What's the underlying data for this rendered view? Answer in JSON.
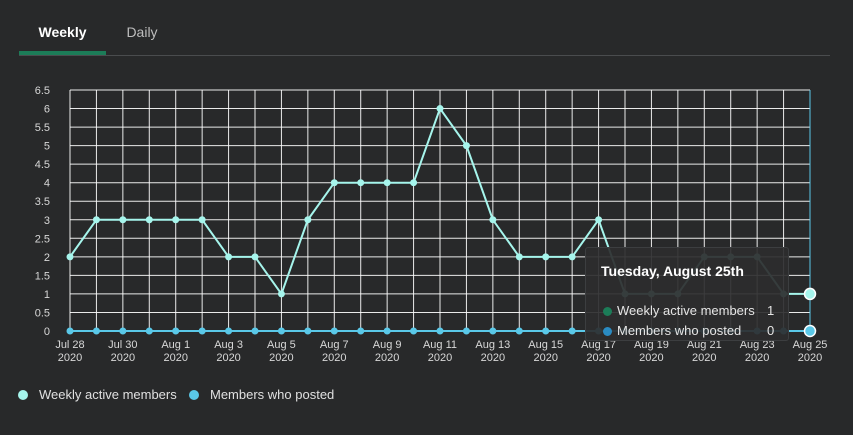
{
  "tabs": [
    {
      "label": "Weekly",
      "active": true
    },
    {
      "label": "Daily",
      "active": false
    }
  ],
  "colors": {
    "accent": "#1c7c58",
    "active_line": "#a6f5ec",
    "posted_line": "#5ac8e8",
    "background": "#28292a",
    "grid": "#ffffff"
  },
  "legend": [
    {
      "label": "Weekly active members",
      "color": "#a6f5ec"
    },
    {
      "label": "Members who posted",
      "color": "#5ac8e8"
    }
  ],
  "tooltip": {
    "title": "Tuesday, August 25th",
    "rows": [
      {
        "label": "Weekly active members",
        "value": "1",
        "color": "#1c7c58"
      },
      {
        "label": "Members who posted",
        "value": "0",
        "color": "#2a8bc2"
      }
    ]
  },
  "chart_data": {
    "type": "line",
    "grid": true,
    "ylim": [
      0,
      6.5
    ],
    "y_ticks": [
      "0",
      "0.5",
      "1",
      "1.5",
      "2",
      "2.5",
      "3",
      "3.5",
      "4",
      "4.5",
      "5",
      "5.5",
      "6",
      "6.5"
    ],
    "x": [
      "Jul 28",
      "Jul 29",
      "Jul 30",
      "Jul 31",
      "Aug 1",
      "Aug 2",
      "Aug 3",
      "Aug 4",
      "Aug 5",
      "Aug 6",
      "Aug 7",
      "Aug 8",
      "Aug 9",
      "Aug 10",
      "Aug 11",
      "Aug 12",
      "Aug 13",
      "Aug 14",
      "Aug 15",
      "Aug 16",
      "Aug 17",
      "Aug 18",
      "Aug 19",
      "Aug 20",
      "Aug 21",
      "Aug 22",
      "Aug 23",
      "Aug 24",
      "Aug 25"
    ],
    "x_tick_labels": [
      {
        "top": "Jul 28",
        "bottom": "2020"
      },
      {
        "top": "Jul 30",
        "bottom": "2020"
      },
      {
        "top": "Aug 1",
        "bottom": "2020"
      },
      {
        "top": "Aug 3",
        "bottom": "2020"
      },
      {
        "top": "Aug 5",
        "bottom": "2020"
      },
      {
        "top": "Aug 7",
        "bottom": "2020"
      },
      {
        "top": "Aug 9",
        "bottom": "2020"
      },
      {
        "top": "Aug 11",
        "bottom": "2020"
      },
      {
        "top": "Aug 13",
        "bottom": "2020"
      },
      {
        "top": "Aug 15",
        "bottom": "2020"
      },
      {
        "top": "Aug 17",
        "bottom": "2020"
      },
      {
        "top": "Aug 19",
        "bottom": "2020"
      },
      {
        "top": "Aug 21",
        "bottom": "2020"
      },
      {
        "top": "Aug 23",
        "bottom": "2020"
      },
      {
        "top": "Aug 25",
        "bottom": "2020"
      }
    ],
    "series": [
      {
        "name": "Weekly active members",
        "color": "#a6f5ec",
        "values": [
          2,
          3,
          3,
          3,
          3,
          3,
          2,
          2,
          1,
          3,
          4,
          4,
          4,
          4,
          6,
          5,
          3,
          2,
          2,
          2,
          3,
          1,
          1,
          1,
          2,
          2,
          2,
          1,
          1
        ]
      },
      {
        "name": "Members who posted",
        "color": "#5ac8e8",
        "values": [
          0,
          0,
          0,
          0,
          0,
          0,
          0,
          0,
          0,
          0,
          0,
          0,
          0,
          0,
          0,
          0,
          0,
          0,
          0,
          0,
          0,
          0,
          0,
          0,
          0,
          0,
          0,
          0,
          0
        ]
      }
    ],
    "highlight_index": 28
  }
}
